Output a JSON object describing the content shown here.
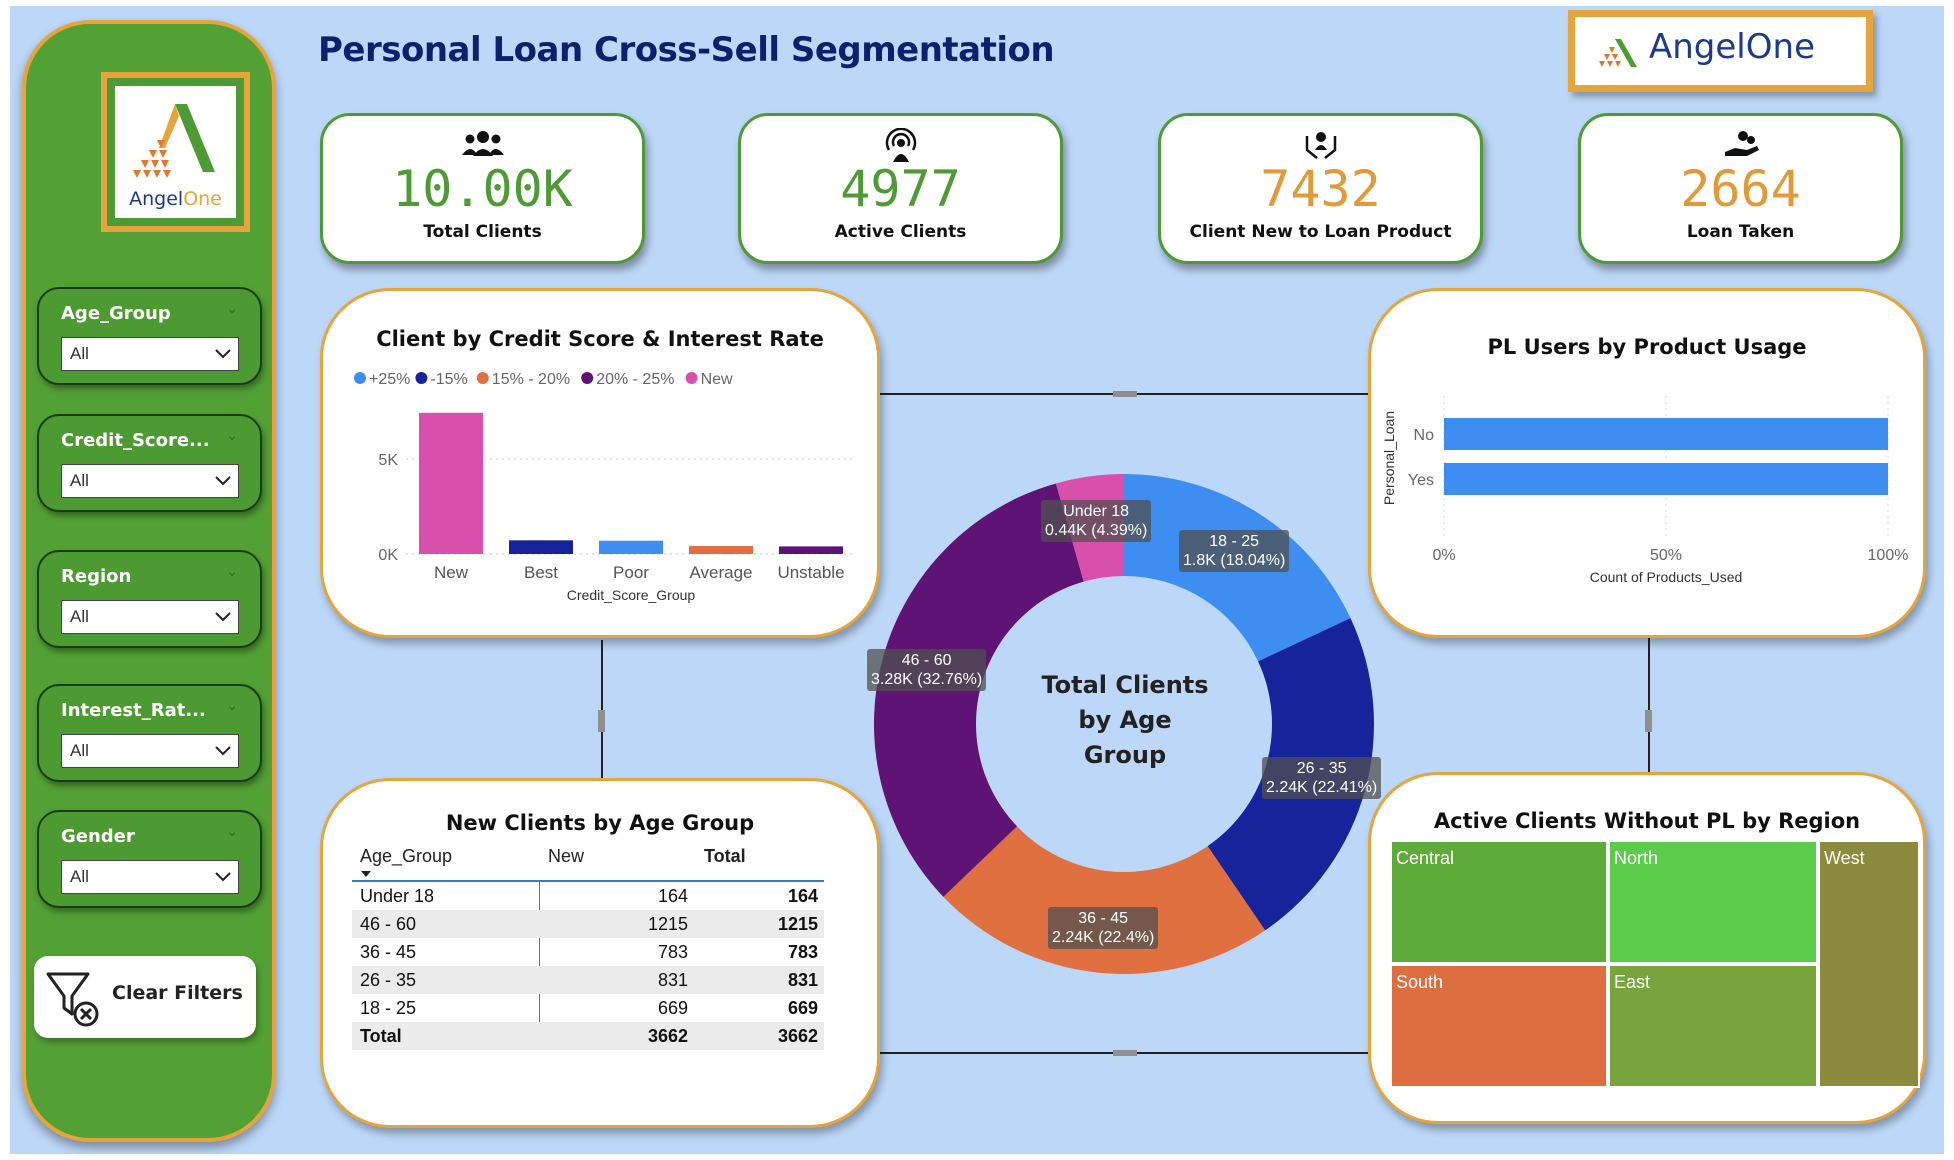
{
  "title": "Personal Loan Cross-Sell Segmentation",
  "brand": {
    "logo_word_1": "Angel",
    "logo_word_2": "One"
  },
  "kpis": [
    {
      "value": "10.00K",
      "label": "Total Clients",
      "icon": "people-group-icon",
      "color": "#4e9a34"
    },
    {
      "value": "4977",
      "label": "Active Clients",
      "icon": "broadcast-person-icon",
      "color": "#4e9a34"
    },
    {
      "value": "7432",
      "label": "Client New to Loan Product",
      "icon": "hands-person-icon",
      "color": "#e09a3a"
    },
    {
      "value": "2664",
      "label": "Loan Taken",
      "icon": "hand-money-icon",
      "color": "#e09a3a"
    }
  ],
  "filters": [
    {
      "title": "Age_Group",
      "value": "All"
    },
    {
      "title": "Credit_Score...",
      "value": "All"
    },
    {
      "title": "Region",
      "value": "All"
    },
    {
      "title": "Interest_Rat...",
      "value": "All"
    },
    {
      "title": "Gender",
      "value": "All"
    }
  ],
  "clear_filters": "Clear Filters",
  "credit_chart": {
    "title": "Client by Credit Score & Interest Rate",
    "xlabel": "Credit_Score_Group",
    "ticks": [
      "0K",
      "5K"
    ],
    "legend": [
      {
        "name": "+25%",
        "color": "#3d8ef0"
      },
      {
        "name": "-15%",
        "color": "#16239a"
      },
      {
        "name": "15% - 20%",
        "color": "#e07040"
      },
      {
        "name": "20% - 25%",
        "color": "#5e1375"
      },
      {
        "name": "New",
        "color": "#d94fac"
      }
    ]
  },
  "product_chart": {
    "title": "PL Users by Product Usage",
    "xlabel": "Count of Products_Used",
    "ylabel": "Personal_Loan",
    "ticks": [
      "0%",
      "50%",
      "100%"
    ]
  },
  "donut": {
    "center_line1": "Total Clients",
    "center_line2": "by Age",
    "center_line3": "Group"
  },
  "age_table": {
    "title": "New Clients by Age Group",
    "headers": [
      "Age_Group",
      "New",
      "Total"
    ],
    "rows": [
      [
        "Under 18",
        "164",
        "164"
      ],
      [
        "46 - 60",
        "1215",
        "1215"
      ],
      [
        "36 - 45",
        "783",
        "783"
      ],
      [
        "26 - 35",
        "831",
        "831"
      ],
      [
        "18 - 25",
        "669",
        "669"
      ]
    ],
    "total": [
      "Total",
      "3662",
      "3662"
    ]
  },
  "region_map": {
    "title": "Active Clients Without PL by Region"
  },
  "chart_data": [
    {
      "type": "bar",
      "title": "Client by Credit Score & Interest Rate",
      "xlabel": "Credit_Score_Group",
      "categories": [
        "New",
        "Best",
        "Poor",
        "Average",
        "Unstable"
      ],
      "series": [
        {
          "name": "New",
          "color": "#d94fac",
          "values": [
            7432,
            0,
            0,
            0,
            0
          ]
        },
        {
          "name": "-15%",
          "color": "#16239a",
          "values": [
            0,
            720,
            0,
            0,
            0
          ]
        },
        {
          "name": "+25%",
          "color": "#3d8ef0",
          "values": [
            0,
            0,
            700,
            0,
            0
          ]
        },
        {
          "name": "15% - 20%",
          "color": "#e07040",
          "values": [
            0,
            0,
            0,
            420,
            0
          ]
        },
        {
          "name": "20% - 25%",
          "color": "#5e1375",
          "values": [
            0,
            0,
            0,
            0,
            400
          ]
        }
      ],
      "ylim": [
        0,
        8000
      ],
      "yticks": [
        0,
        5000
      ],
      "grid": true,
      "legend": "top-left"
    },
    {
      "type": "bar",
      "orientation": "horizontal",
      "title": "PL Users by Product Usage",
      "xlabel": "Count of Products_Used",
      "ylabel": "Personal_Loan",
      "categories": [
        "No",
        "Yes"
      ],
      "values": [
        100,
        100
      ],
      "xlim": [
        0,
        100
      ],
      "xticks": [
        "0%",
        "50%",
        "100%"
      ],
      "color": "#3d8ef0"
    },
    {
      "type": "pie",
      "style": "donut",
      "title": "Total Clients by Age Group",
      "slices": [
        {
          "label": "18 - 25",
          "value": 1.8,
          "display": "1.8K (18.04%)",
          "percent": 18.04,
          "color": "#3d8ef0"
        },
        {
          "label": "26 - 35",
          "value": 2.24,
          "display": "2.24K (22.41%)",
          "percent": 22.41,
          "color": "#16239a"
        },
        {
          "label": "36 - 45",
          "value": 2.24,
          "display": "2.24K (22.4%)",
          "percent": 22.4,
          "color": "#e07040"
        },
        {
          "label": "46 - 60",
          "value": 3.28,
          "display": "3.28K (32.76%)",
          "percent": 32.76,
          "color": "#5e1375"
        },
        {
          "label": "Under 18",
          "value": 0.44,
          "display": "0.44K (4.39%)",
          "percent": 4.39,
          "color": "#d94fac"
        }
      ]
    },
    {
      "type": "treemap",
      "title": "Active Clients Without PL by Region",
      "items": [
        {
          "label": "Central",
          "color": "#5eaa3a"
        },
        {
          "label": "North",
          "color": "#5cca4a"
        },
        {
          "label": "West",
          "color": "#8c8a3c"
        },
        {
          "label": "South",
          "color": "#dd6e40"
        },
        {
          "label": "East",
          "color": "#78a43e"
        }
      ]
    }
  ]
}
